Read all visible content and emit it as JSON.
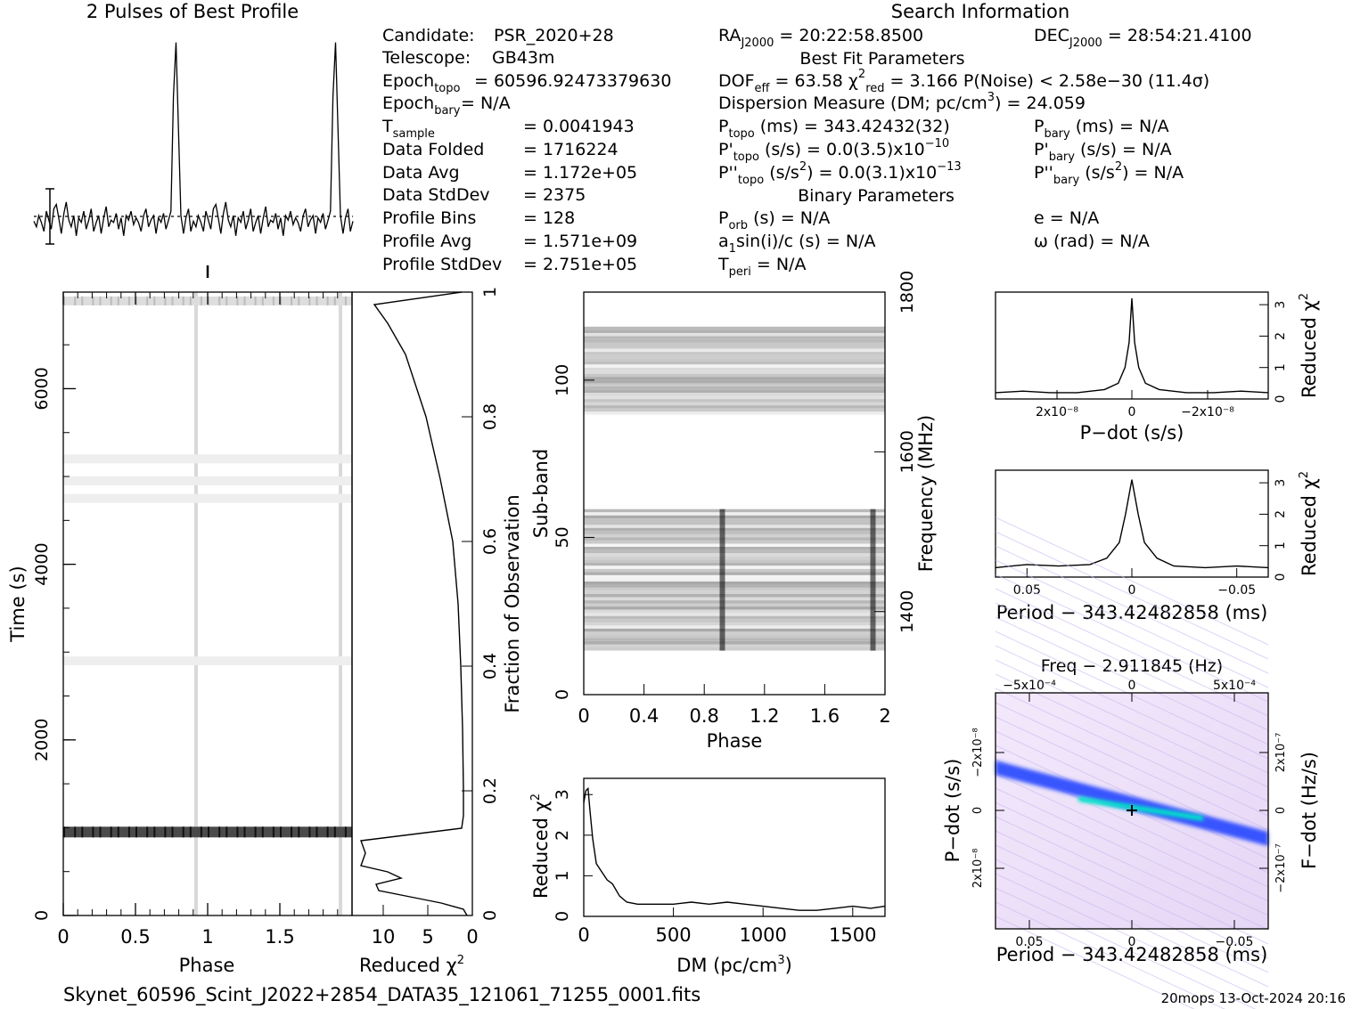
{
  "header": {
    "profile_title": "2 Pulses of Best Profile",
    "search_title": "Search Information",
    "best_fit_title": "Best Fit Parameters",
    "binary_title": "Binary Parameters"
  },
  "candidate_info": [
    {
      "label": "Candidate:",
      "value": "PSR_2020+28"
    },
    {
      "label": "Telescope:",
      "value": "GB43m"
    },
    {
      "label": "Epoch_topo",
      "value": "= 60596.92473379630"
    },
    {
      "label": "Epoch_bary",
      "value": "= N/A"
    },
    {
      "label": "T_sample",
      "value": "= 0.0041943"
    },
    {
      "label": "Data Folded",
      "value": "= 1716224"
    },
    {
      "label": "Data Avg",
      "value": "= 1.172e+05"
    },
    {
      "label": "Data StdDev",
      "value": "= 2375"
    },
    {
      "label": "Profile Bins",
      "value": "= 128"
    },
    {
      "label": "Profile Avg",
      "value": "= 1.571e+09"
    },
    {
      "label": "Profile StdDev",
      "value": "= 2.751e+05"
    }
  ],
  "search_info": {
    "ra": "RA_J2000 = 20:22:58.8500",
    "dec": "DEC_J2000 = 28:54:21.4100",
    "dof": "DOF_eff = 63.58",
    "chi2": "χ²_red = 3.166",
    "pnoise": "P(Noise) < 2.58e−30",
    "sigma": "(11.4σ)",
    "dm": "Dispersion Measure (DM; pc/cm³) = 24.059",
    "ptopo": "P_topo (ms) = 343.42432(32)",
    "pbary": "P_bary (ms) = N/A",
    "pdtopo": "P'_topo (s/s) = 0.0(3.5)x10⁻¹⁰",
    "pdbary": "P'_bary (s/s) = N/A",
    "pddtopo": "P''_topo (s/s²) = 0.0(3.1)x10⁻¹³",
    "pddbary": "P''_bary (s/s²) = N/A",
    "porb": "P_orb (s) = N/A",
    "e": "e = N/A",
    "asini": "a₁sin(i)/c (s) = N/A",
    "omega": "ω (rad) = N/A",
    "tperi": "T_peri = N/A"
  },
  "footer": {
    "filename": "Skynet_60596_Scint_J2022+2854_DATA35_121061_71255_0001.fits",
    "stamp": "20mops 13-Oct-2024 20:16"
  },
  "colors": {
    "ink": "#000000",
    "grey": "#808080",
    "ridge": "#1a3cff",
    "ridge_core": "#00e5c8",
    "bg_pink": "#e8d8f8"
  },
  "chart_data": [
    {
      "id": "profile",
      "type": "line",
      "title": "2 Pulses of Best Profile",
      "x": [
        0.0,
        0.016,
        0.031,
        0.047,
        0.063,
        0.078,
        0.094,
        0.109,
        0.125,
        0.141,
        0.156,
        0.172,
        0.188,
        0.203,
        0.219,
        0.234,
        0.25,
        0.266,
        0.281,
        0.297,
        0.313,
        0.328,
        0.344,
        0.359,
        0.375,
        0.391,
        0.406,
        0.422,
        0.438,
        0.453,
        0.469,
        0.484,
        0.5,
        0.516,
        0.531,
        0.547,
        0.563,
        0.578,
        0.594,
        0.609,
        0.625,
        0.641,
        0.656,
        0.672,
        0.688,
        0.703,
        0.719,
        0.734,
        0.75,
        0.766,
        0.781,
        0.797,
        0.813,
        0.828,
        0.844,
        0.859,
        0.875,
        0.891,
        0.906,
        0.922,
        0.938,
        0.953,
        0.969,
        0.984,
        1.0
      ],
      "values": [
        0.05,
        -0.2,
        0.3,
        0.0,
        -0.4,
        0.5,
        0.1,
        -0.3,
        0.6,
        0.8,
        0.2,
        -0.5,
        0.4,
        0.9,
        0.1,
        -0.2,
        0.3,
        -0.6,
        0.2,
        0.0,
        0.5,
        -0.3,
        0.1,
        0.6,
        -0.4,
        0.0,
        0.3,
        -0.5,
        0.2,
        0.7,
        -0.2,
        0.1,
        0.0,
        0.4,
        -0.3,
        0.2,
        -0.6,
        0.3,
        0.1,
        0.5,
        -0.1,
        0.2,
        0.0,
        -0.4,
        0.3,
        0.6,
        -0.2,
        0.1,
        0.3,
        -0.5,
        0.2,
        0.0,
        0.4,
        -0.3,
        0.1,
        0.5,
        5.6,
        8.0,
        4.2,
        0.3,
        -0.5,
        0.2,
        0.6,
        -0.4,
        0.05
      ],
      "periods": 2
    },
    {
      "id": "time_phase",
      "type": "heatmap",
      "xlabel": "Phase",
      "ylabel": "Time (s)",
      "xlim": [
        0,
        2
      ],
      "ylim": [
        0,
        7100
      ],
      "x_ticks": [
        "0",
        "0.5",
        "1",
        "1.5"
      ],
      "y_ticks": [
        "0",
        "2000",
        "4000",
        "6000"
      ],
      "pulse_phase": 0.92,
      "bright_rows_s": [
        950,
        7000
      ],
      "faint_rows_s": [
        4750,
        4950,
        5200,
        2900
      ]
    },
    {
      "id": "chi2_vs_fraction",
      "type": "line",
      "xlabel": "Reduced χ²",
      "ylabel": "Fraction of Observation",
      "x_ticks": [
        "10",
        "5",
        "0"
      ],
      "xlim": [
        13.5,
        0
      ],
      "y_ticks": [
        "0.2",
        "0.4",
        "0.6",
        "0.8",
        "1"
      ],
      "ylim": [
        0,
        1
      ],
      "fraction": [
        0.0,
        0.01,
        0.02,
        0.03,
        0.04,
        0.05,
        0.06,
        0.07,
        0.08,
        0.1,
        0.12,
        0.14,
        0.16,
        0.2,
        0.3,
        0.4,
        0.5,
        0.6,
        0.7,
        0.8,
        0.9,
        0.95,
        0.98,
        1.0
      ],
      "reduced_chi2": [
        0.6,
        1.0,
        3.5,
        7.0,
        10.5,
        10.8,
        8.0,
        9.5,
        12.5,
        12.0,
        12.5,
        1.2,
        1.0,
        1.0,
        1.1,
        1.3,
        1.6,
        2.2,
        3.6,
        5.2,
        7.5,
        9.5,
        11.0,
        1.2
      ]
    },
    {
      "id": "subband_phase",
      "type": "heatmap",
      "xlabel": "Phase",
      "ylabel": "Sub-band",
      "y2label": "Frequency (MHz)",
      "x_ticks": [
        "0",
        "0.4",
        "0.8",
        "1.2",
        "1.6",
        "2"
      ],
      "xlim": [
        0,
        2
      ],
      "y_ticks": [
        "0",
        "50",
        "100"
      ],
      "ylim": [
        0,
        128
      ],
      "y2_ticks": [
        "1400",
        "1600",
        "1800"
      ],
      "pulse_phase": 0.92,
      "occupied_subbands": [
        [
          14,
          59
        ],
        [
          89,
          117
        ]
      ]
    },
    {
      "id": "dm_chi2",
      "type": "line",
      "xlabel": "DM (pc/cm³)",
      "ylabel": "Reduced χ²",
      "x_ticks": [
        "0",
        "500",
        "1000",
        "1500"
      ],
      "xlim": [
        0,
        1680
      ],
      "y_ticks": [
        "0",
        "1",
        "2",
        "3"
      ],
      "ylim": [
        0,
        3.4
      ],
      "x": [
        0,
        12,
        24,
        35,
        50,
        70,
        100,
        130,
        160,
        200,
        240,
        300,
        400,
        500,
        600,
        700,
        800,
        900,
        1000,
        1100,
        1200,
        1300,
        1400,
        1500,
        1600,
        1680
      ],
      "values": [
        2.8,
        3.1,
        3.15,
        2.6,
        1.9,
        1.3,
        1.1,
        0.9,
        0.8,
        0.5,
        0.35,
        0.3,
        0.3,
        0.3,
        0.35,
        0.3,
        0.35,
        0.3,
        0.25,
        0.2,
        0.15,
        0.15,
        0.2,
        0.25,
        0.2,
        0.25
      ]
    },
    {
      "id": "pdot_chi2",
      "type": "line",
      "xlabel": "P−dot (s/s)",
      "ylabel": "Reduced χ²",
      "x_ticks": [
        "2x10⁻⁸",
        "0",
        "−2x10⁻⁸"
      ],
      "y_ticks": [
        "0",
        "1",
        "2",
        "3"
      ],
      "ylim": [
        0,
        3.4
      ],
      "x": [
        -1.0,
        -0.8,
        -0.6,
        -0.4,
        -0.2,
        -0.1,
        -0.05,
        -0.02,
        0.0,
        0.02,
        0.05,
        0.1,
        0.2,
        0.4,
        0.6,
        0.8,
        1.0
      ],
      "values": [
        0.2,
        0.25,
        0.2,
        0.2,
        0.3,
        0.5,
        1.0,
        1.8,
        3.2,
        1.8,
        1.0,
        0.5,
        0.3,
        0.2,
        0.2,
        0.25,
        0.2
      ]
    },
    {
      "id": "period_chi2",
      "type": "line",
      "xlabel": "Period − 343.42482858 (ms)",
      "ylabel": "Reduced χ²",
      "x_ticks": [
        "0.05",
        "0",
        "−0.05"
      ],
      "y_ticks": [
        "0",
        "1",
        "2",
        "3"
      ],
      "ylim": [
        0,
        3.4
      ],
      "x": [
        0.065,
        0.05,
        0.035,
        0.02,
        0.012,
        0.006,
        0.003,
        0.0,
        -0.003,
        -0.006,
        -0.012,
        -0.02,
        -0.035,
        -0.05,
        -0.065
      ],
      "values": [
        0.3,
        0.4,
        0.35,
        0.4,
        0.6,
        1.1,
        2.0,
        3.1,
        2.0,
        1.1,
        0.6,
        0.35,
        0.3,
        0.35,
        0.3
      ]
    },
    {
      "id": "p_pdot_plane",
      "type": "heatmap",
      "title": "Freq − 2.911845 (Hz)",
      "xlabel": "Period − 343.42482858 (ms)",
      "ylabel": "P−dot (s/s)",
      "y2label": "F−dot (Hz/s)",
      "x_ticks": [
        "0.05",
        "0",
        "−0.05"
      ],
      "top_ticks": [
        "−5x10⁻⁴",
        "0",
        "5x10⁻⁴"
      ],
      "y_ticks": [
        "−2x10⁻⁸",
        "0",
        "2x10⁻⁸"
      ],
      "y2_ticks": [
        "2x10⁻⁷",
        "0",
        "−2x10⁻⁷"
      ],
      "ridge_slope": "negative",
      "peak": [
        0,
        0
      ]
    }
  ]
}
